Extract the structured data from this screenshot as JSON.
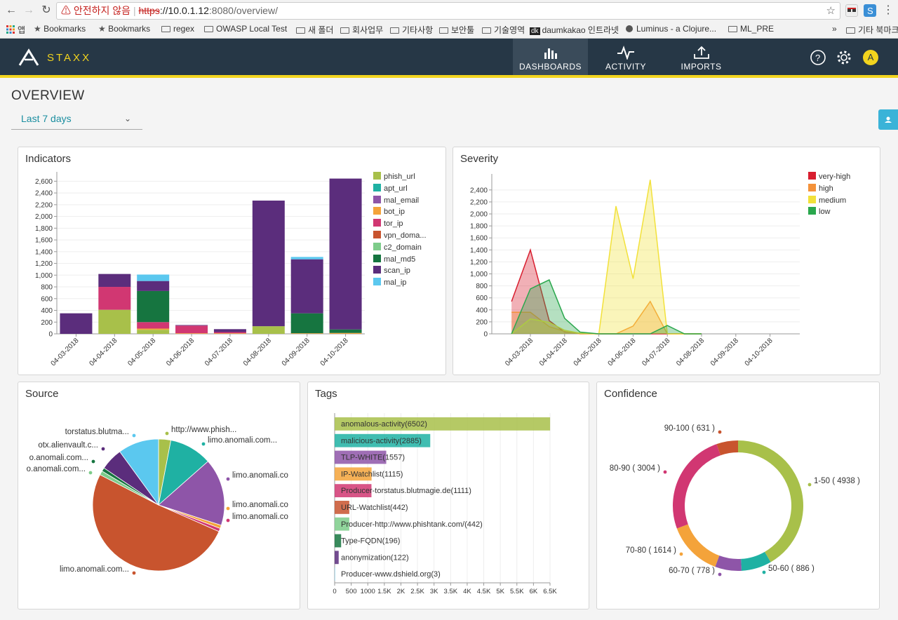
{
  "browser": {
    "warning": "안전하지 않음",
    "url_scheme": "https",
    "url_host": "://10.0.1.12",
    "url_rest": ":8080/overview/",
    "bookmarks": [
      {
        "label": "앱",
        "type": "apps"
      },
      {
        "label": "Bookmarks",
        "type": "star"
      },
      {
        "label": "Bookmarks",
        "type": "star"
      },
      {
        "label": "regex",
        "type": "folder"
      },
      {
        "label": "OWASP Local Test",
        "type": "folder"
      },
      {
        "label": "새 폴더",
        "type": "folder"
      },
      {
        "label": "회사업무",
        "type": "folder"
      },
      {
        "label": "기타사항",
        "type": "folder"
      },
      {
        "label": "보안툴",
        "type": "folder"
      },
      {
        "label": "기술영역",
        "type": "folder"
      },
      {
        "label": "daumkakao 인트라넷",
        "type": "dk"
      },
      {
        "label": "Luminus - a Clojure...",
        "type": "page"
      },
      {
        "label": "ML_PRE",
        "type": "folder"
      }
    ],
    "more_bookmarks": "기타 북마크",
    "overflow": "»"
  },
  "header": {
    "brand": "STAXX",
    "nav": [
      {
        "label": "DASHBOARDS",
        "icon": "bar-chart-icon",
        "active": true
      },
      {
        "label": "ACTIVITY",
        "icon": "pulse-icon",
        "active": false
      },
      {
        "label": "IMPORTS",
        "icon": "upload-icon",
        "active": false
      }
    ],
    "avatar_letter": "A"
  },
  "page": {
    "title": "OVERVIEW",
    "range": "Last 7 days"
  },
  "panels": {
    "indicators": "Indicators",
    "severity": "Severity",
    "source": "Source",
    "tags": "Tags",
    "confidence": "Confidence"
  },
  "colors": {
    "phish_url": "#a8c04a",
    "apt_url": "#1fb1a3",
    "mal_email": "#8e55a8",
    "bot_ip": "#f4a33a",
    "tor_ip": "#d13772",
    "vpn_domain": "#c8542e",
    "c2_domain": "#7dcc8a",
    "mal_md5": "#167540",
    "scan_ip": "#5b2d7c",
    "mal_ip": "#5bc8ef",
    "very_high": "#d81e2f",
    "high": "#f4923a",
    "medium": "#f2e13a",
    "low": "#2aa74d"
  },
  "chart_data": [
    {
      "type": "bar",
      "name": "Indicators",
      "stacked": true,
      "categories": [
        "04-03-2018",
        "04-04-2018",
        "04-05-2018",
        "04-06-2018",
        "04-07-2018",
        "04-08-2018",
        "04-09-2018",
        "04-10-2018"
      ],
      "y_ticks": [
        "0",
        "200",
        "400",
        "600",
        "800",
        "1,000",
        "1,200",
        "1,400",
        "1,600",
        "1,800",
        "2,000",
        "2,200",
        "2,400",
        "2,600"
      ],
      "ylim": [
        0,
        2700
      ],
      "legend": "right",
      "series": [
        {
          "name": "phish_url",
          "key": "phish_url",
          "values": [
            0,
            410,
            70,
            0,
            0,
            130,
            0,
            0
          ]
        },
        {
          "name": "apt_url",
          "key": "apt_url",
          "values": [
            0,
            0,
            0,
            0,
            0,
            0,
            0,
            0
          ]
        },
        {
          "name": "mal_email",
          "key": "mal_email",
          "values": [
            0,
            0,
            0,
            0,
            0,
            0,
            0,
            0
          ]
        },
        {
          "name": "bot_ip",
          "key": "bot_ip",
          "values": [
            0,
            0,
            20,
            10,
            10,
            0,
            10,
            15
          ]
        },
        {
          "name": "tor_ip",
          "key": "tor_ip",
          "values": [
            0,
            390,
            110,
            130,
            20,
            0,
            0,
            0
          ]
        },
        {
          "name": "vpn_doma...",
          "key": "vpn_domain",
          "values": [
            0,
            0,
            0,
            0,
            0,
            0,
            0,
            0
          ]
        },
        {
          "name": "c2_domain",
          "key": "c2_domain",
          "values": [
            0,
            0,
            0,
            0,
            0,
            0,
            0,
            0
          ]
        },
        {
          "name": "mal_md5",
          "key": "mal_md5",
          "values": [
            0,
            0,
            530,
            0,
            0,
            0,
            340,
            60
          ]
        },
        {
          "name": "scan_ip",
          "key": "scan_ip",
          "values": [
            350,
            220,
            170,
            10,
            50,
            2140,
            920,
            2570
          ]
        },
        {
          "name": "mal_ip",
          "key": "mal_ip",
          "values": [
            0,
            0,
            110,
            0,
            0,
            0,
            40,
            0
          ]
        }
      ]
    },
    {
      "type": "area",
      "name": "Severity",
      "categories": [
        "04-03-2018",
        "04-04-2018",
        "04-05-2018",
        "04-06-2018",
        "04-07-2018",
        "04-08-2018",
        "04-09-2018",
        "04-10-2018"
      ],
      "y_ticks": [
        "0",
        "200",
        "400",
        "600",
        "800",
        "1,000",
        "1,200",
        "1,400",
        "1,600",
        "1,800",
        "2,000",
        "2,200",
        "2,400"
      ],
      "ylim": [
        0,
        2550
      ],
      "legend": "right",
      "x_points": [
        0,
        1,
        2,
        3,
        4,
        5,
        6,
        7
      ],
      "series": [
        {
          "name": "very-high",
          "key": "very_high",
          "x": [
            -0.55,
            0,
            0.55,
            1,
            1.45,
            2,
            2.5,
            3,
            4,
            5
          ],
          "values": [
            540,
            1400,
            220,
            30,
            10,
            0,
            0,
            0,
            0,
            0
          ]
        },
        {
          "name": "high",
          "key": "high",
          "x": [
            -0.55,
            0,
            0.55,
            1,
            1.45,
            2,
            2.5,
            3,
            3.5,
            4,
            4.5,
            5
          ],
          "values": [
            360,
            360,
            120,
            40,
            0,
            0,
            0,
            130,
            540,
            0,
            0,
            0
          ]
        },
        {
          "name": "medium",
          "key": "medium",
          "x": [
            -0.55,
            0,
            0.55,
            1,
            1.45,
            2,
            2.5,
            3,
            3.5,
            4,
            4.5,
            5
          ],
          "values": [
            0,
            250,
            190,
            60,
            10,
            0,
            2130,
            920,
            2570,
            0,
            0,
            0
          ]
        },
        {
          "name": "low",
          "key": "low",
          "x": [
            -0.55,
            0,
            0.55,
            1,
            1.45,
            2,
            2.5,
            3,
            3.5,
            4,
            4.5,
            5
          ],
          "values": [
            0,
            750,
            900,
            260,
            30,
            0,
            0,
            0,
            0,
            140,
            0,
            0
          ]
        }
      ]
    },
    {
      "type": "pie",
      "name": "Source",
      "slices": [
        {
          "label": "http://www.phish...",
          "value": 3.0,
          "color": "#a8c04a"
        },
        {
          "label": "limo.anomali.com...",
          "value": 10.5,
          "color": "#1fb1a3"
        },
        {
          "label": "limo.anomali.co",
          "value": 16.5,
          "color": "#8e55a8"
        },
        {
          "label": "limo.anomali.co",
          "value": 0.8,
          "color": "#f4a33a"
        },
        {
          "label": "limo.anomali.co",
          "value": 0.8,
          "color": "#d13772"
        },
        {
          "label": "limo.anomali.com...",
          "value": 51.0,
          "color": "#c8542e"
        },
        {
          "label": "o.anomali.com...",
          "value": 1.0,
          "color": "#7dcc8a"
        },
        {
          "label": "o.anomali.com...",
          "value": 0.9,
          "color": "#167540"
        },
        {
          "label": "otx.alienvault.c...",
          "value": 5.5,
          "color": "#5b2d7c"
        },
        {
          "label": "torstatus.blutma...",
          "value": 10.0,
          "color": "#5bc8ef"
        }
      ]
    },
    {
      "type": "bar",
      "name": "Tags",
      "orientation": "horizontal",
      "categories": [
        "anomalous-activity(6502)",
        "malicious-activity(2885)",
        "TLP-WHITE(1557)",
        "IP-Watchlist(1115)",
        "Producer-torstatus.blutmagie.de(1111)",
        "URL-Watchlist(442)",
        "Producer-http://www.phishtank.com/(442)",
        "Type-FQDN(196)",
        "anonymization(122)",
        "Producer-www.dshield.org(3)"
      ],
      "values": [
        6502,
        2885,
        1557,
        1115,
        1111,
        442,
        442,
        196,
        122,
        3
      ],
      "colors": [
        "#a8c04a",
        "#1fb1a3",
        "#8e55a8",
        "#f4a33a",
        "#d13772",
        "#c8542e",
        "#7dcc8a",
        "#167540",
        "#5b2d7c",
        "#5bc8ef"
      ],
      "x_ticks": [
        "0",
        "500",
        "1000",
        "1.5K",
        "2K",
        "2.5K",
        "3K",
        "3.5K",
        "4K",
        "4.5K",
        "5K",
        "5.5K",
        "6K",
        "6.5K"
      ],
      "xlim": [
        0,
        6500
      ]
    },
    {
      "type": "pie",
      "name": "Confidence",
      "donut": true,
      "slices": [
        {
          "label": "1-50 ( 4938 )",
          "value": 4938,
          "color": "#a8c04a"
        },
        {
          "label": "50-60 ( 886 )",
          "value": 886,
          "color": "#1fb1a3"
        },
        {
          "label": "60-70 ( 778 )",
          "value": 778,
          "color": "#8e55a8"
        },
        {
          "label": "70-80 ( 1614 )",
          "value": 1614,
          "color": "#f4a33a"
        },
        {
          "label": "80-90 ( 3004 )",
          "value": 3004,
          "color": "#d13772"
        },
        {
          "label": "90-100 ( 631 )",
          "value": 631,
          "color": "#c8542e"
        }
      ]
    }
  ]
}
